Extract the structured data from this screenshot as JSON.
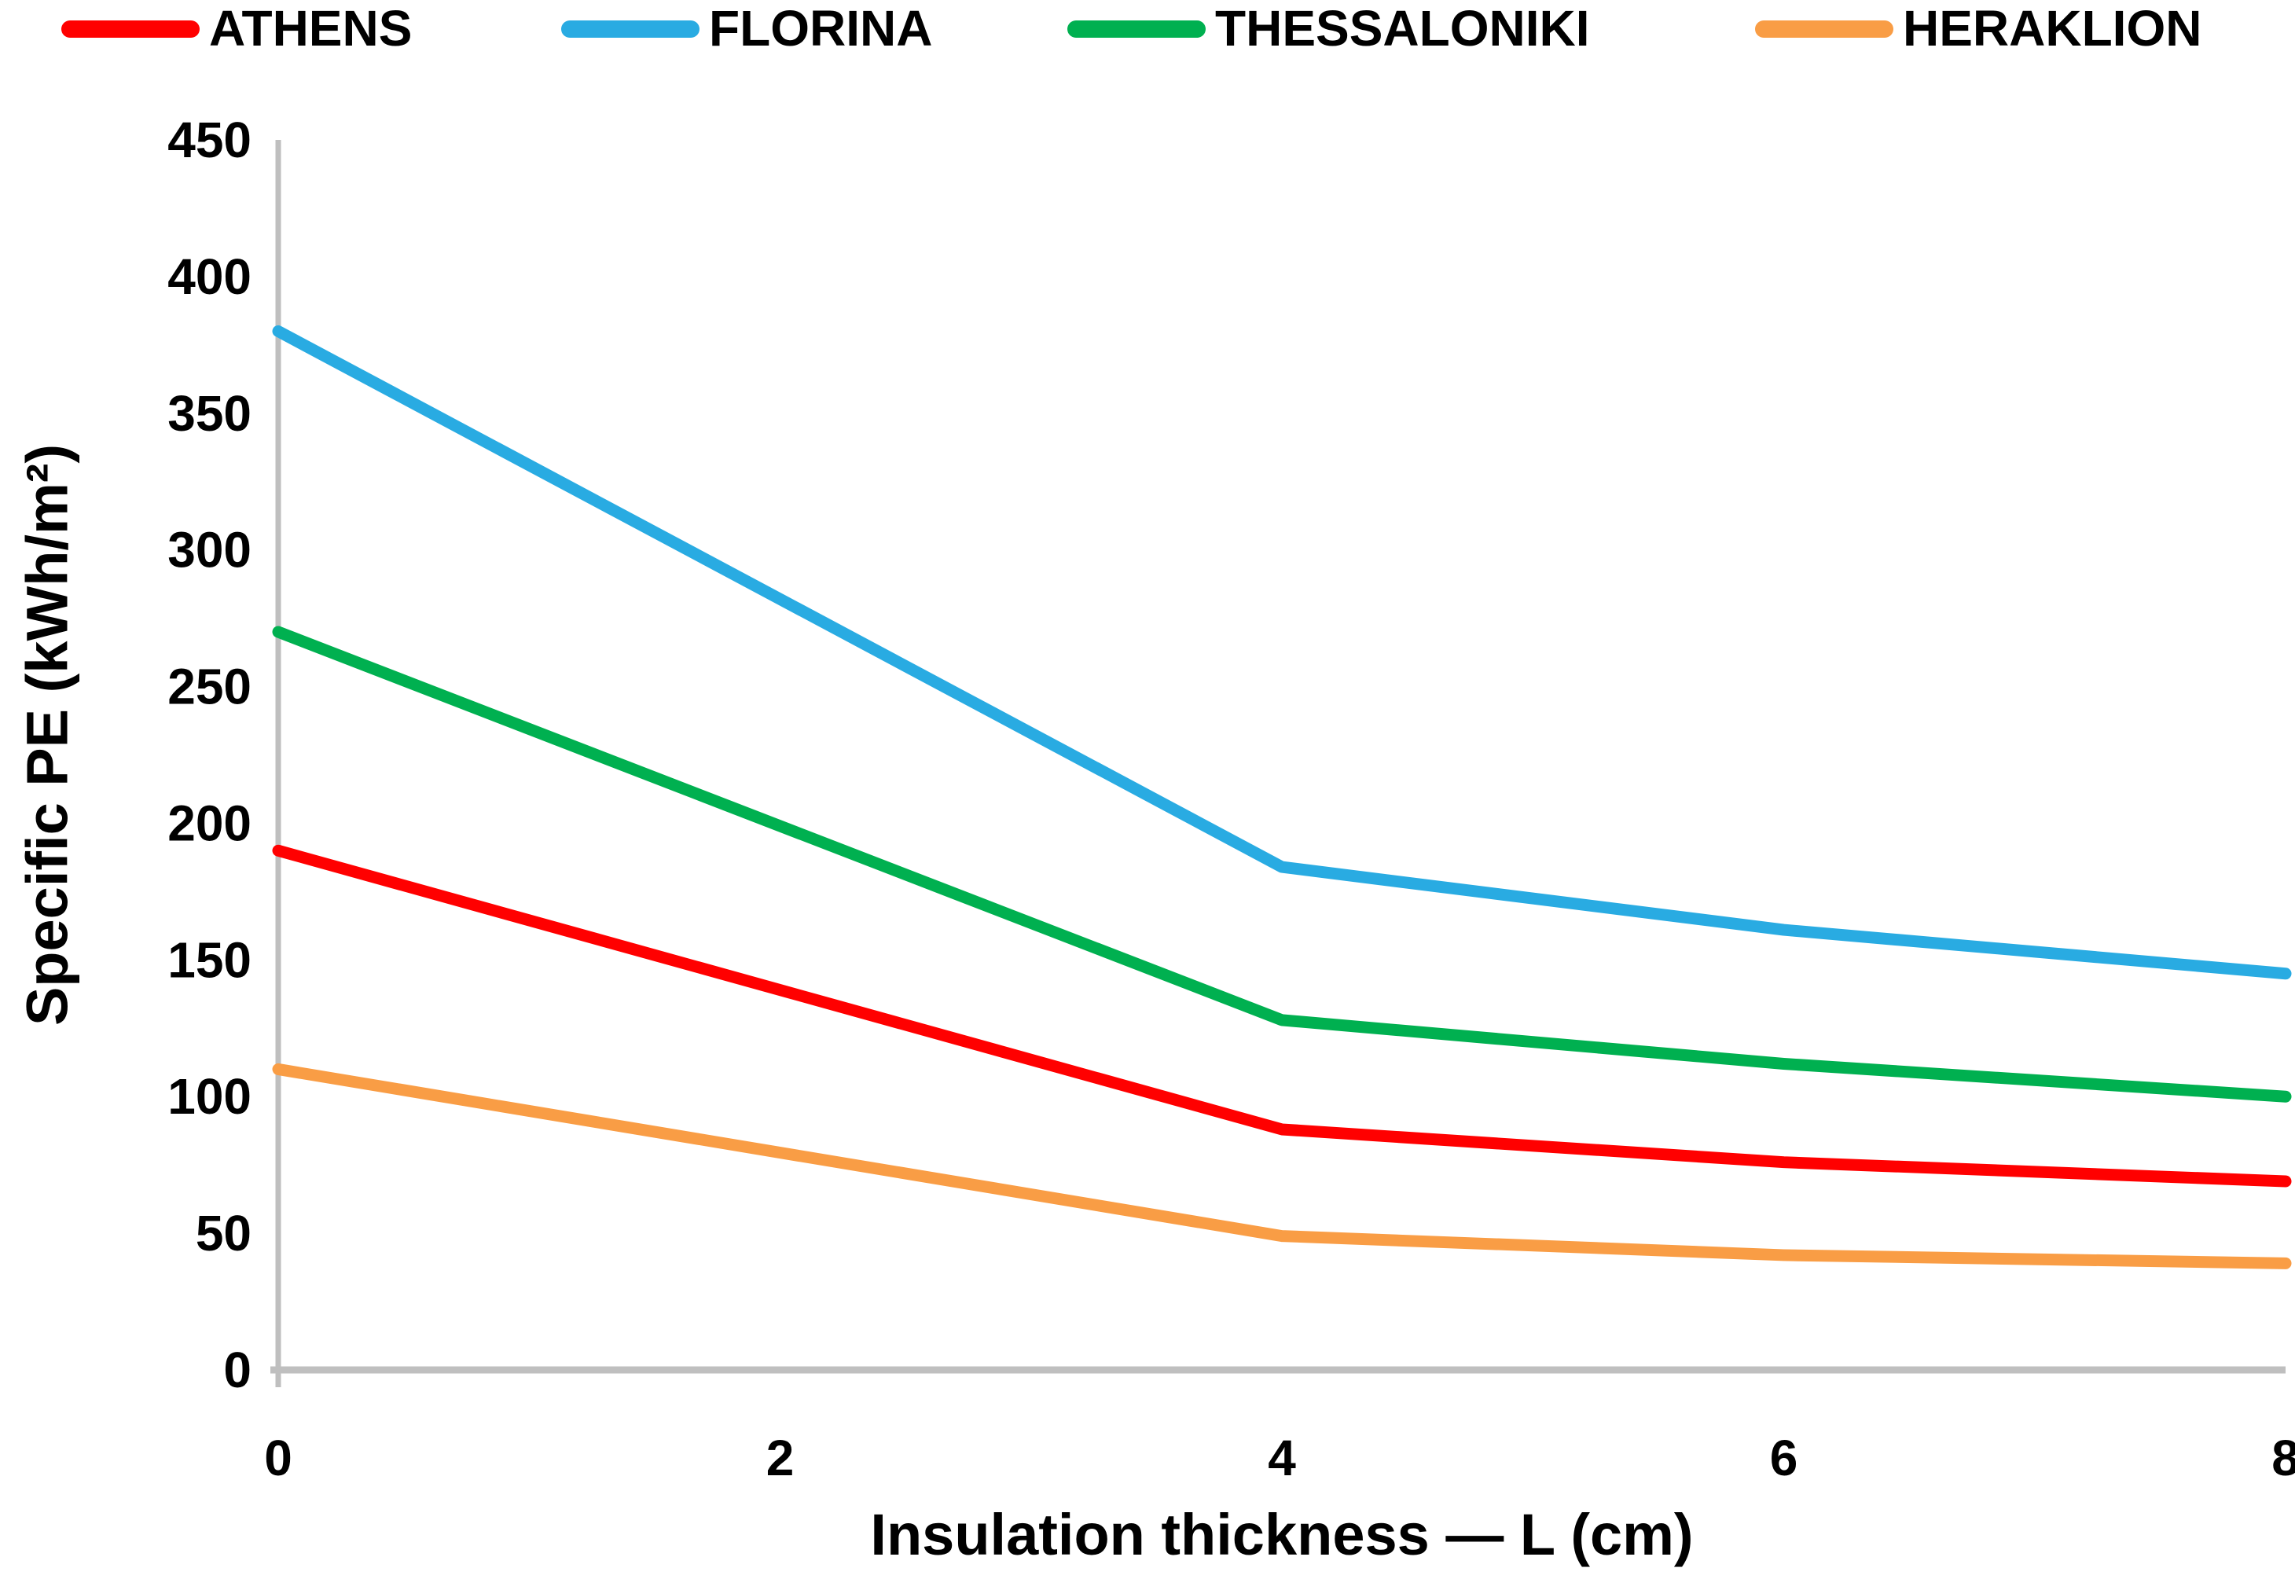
{
  "chart_data": {
    "type": "line",
    "x": [
      0,
      4,
      6,
      8
    ],
    "series": [
      {
        "name": "ATHENS",
        "color": "#FF0000",
        "values": [
          190,
          88,
          76,
          69
        ]
      },
      {
        "name": "FLORINA",
        "color": "#29ABE2",
        "values": [
          380,
          184,
          161,
          145
        ]
      },
      {
        "name": "THESSALONIKI",
        "color": "#00B050",
        "values": [
          270,
          128,
          112,
          100
        ]
      },
      {
        "name": "HERAKLION",
        "color": "#F99D45",
        "values": [
          110,
          49,
          42,
          39
        ]
      }
    ],
    "xlabel": "Insulation thickness — L (cm)",
    "ylabel": "Specific PE (kWh/m²)",
    "xlim": [
      0,
      8
    ],
    "ylim": [
      0,
      450
    ],
    "xticks": [
      0,
      2,
      4,
      6,
      8
    ],
    "yticks": [
      0,
      50,
      100,
      150,
      200,
      250,
      300,
      350,
      400,
      450
    ],
    "grid": false,
    "legend_position": "top",
    "axis_color": "#BFBFBF",
    "text_color": "#000000"
  }
}
